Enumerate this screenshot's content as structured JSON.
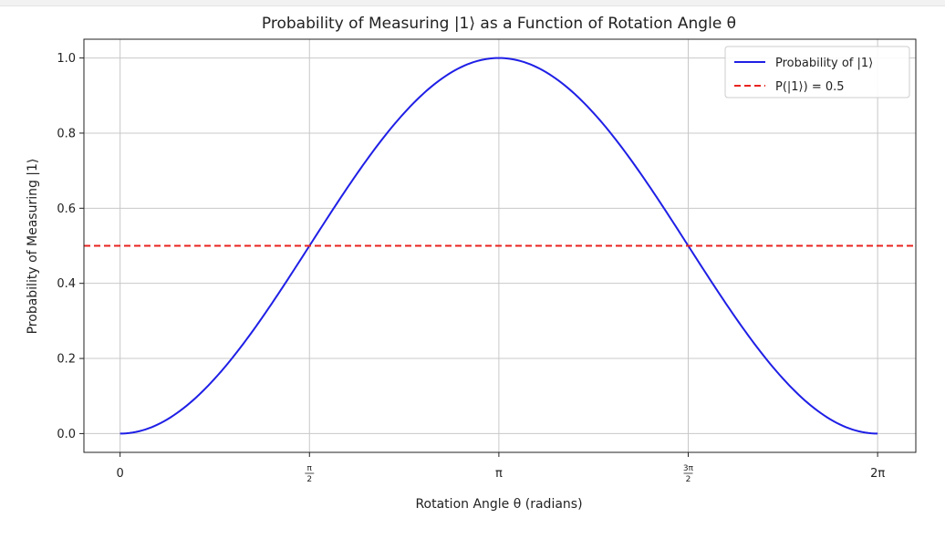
{
  "chart_data": {
    "type": "line",
    "title": "Probability of Measuring |1⟩ as a Function of Rotation Angle θ",
    "xlabel": "Rotation Angle θ (radians)",
    "ylabel": "Probability of Measuring |1⟩",
    "xlim": [
      -0.3,
      6.6
    ],
    "ylim": [
      -0.05,
      1.05
    ],
    "grid": true,
    "legend_position": "top-right",
    "x_ticks": [
      {
        "value": 0,
        "label": "0",
        "kind": "plain"
      },
      {
        "value": 1.5708,
        "label": "π/2",
        "kind": "frac",
        "num": "π",
        "den": "2"
      },
      {
        "value": 3.1416,
        "label": "π",
        "kind": "plain"
      },
      {
        "value": 4.7124,
        "label": "3π/2",
        "kind": "frac",
        "num": "3π",
        "den": "2"
      },
      {
        "value": 6.2832,
        "label": "2π",
        "kind": "plain"
      }
    ],
    "y_ticks": [
      {
        "value": 0.0,
        "label": "0.0"
      },
      {
        "value": 0.2,
        "label": "0.2"
      },
      {
        "value": 0.4,
        "label": "0.4"
      },
      {
        "value": 0.6,
        "label": "0.6"
      },
      {
        "value": 0.8,
        "label": "0.8"
      },
      {
        "value": 1.0,
        "label": "1.0"
      }
    ],
    "series": [
      {
        "name": "Probability of |1⟩",
        "color": "#1f1fe6",
        "style": "solid",
        "function": "sin^2(θ/2)",
        "x": [
          0,
          0.3927,
          0.7854,
          1.1781,
          1.5708,
          1.9635,
          2.3562,
          2.7489,
          3.1416,
          3.5343,
          3.927,
          4.3197,
          4.7124,
          5.1051,
          5.4978,
          5.8905,
          6.2832
        ],
        "values": [
          0.0,
          0.038,
          0.146,
          0.309,
          0.5,
          0.691,
          0.854,
          0.962,
          1.0,
          0.962,
          0.854,
          0.691,
          0.5,
          0.309,
          0.146,
          0.038,
          0.0
        ]
      },
      {
        "name": "P(|1⟩) = 0.5",
        "color": "#e8231f",
        "style": "dashed",
        "y": 0.5
      }
    ]
  }
}
